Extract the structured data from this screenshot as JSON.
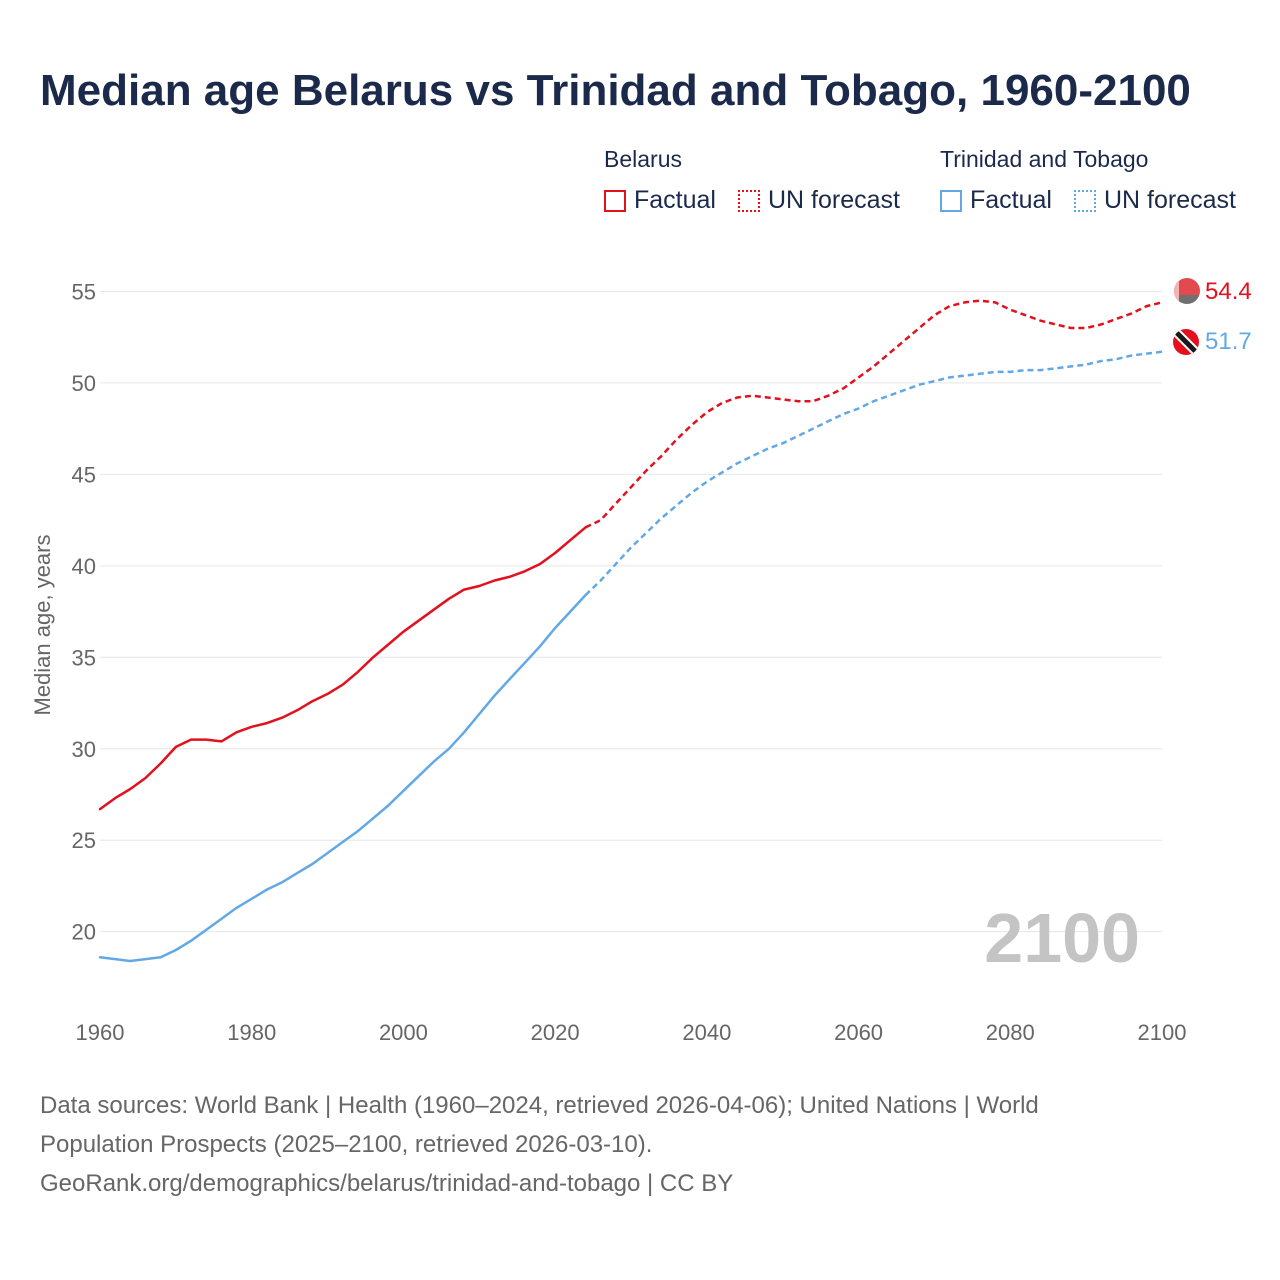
{
  "title": "Median age Belarus vs Trinidad and Tobago, 1960-2100",
  "legend": {
    "groups": [
      {
        "title": "Belarus",
        "factual": "Factual",
        "forecast": "UN forecast",
        "color": "#e3101e"
      },
      {
        "title": "Trinidad and Tobago",
        "factual": "Factual",
        "forecast": "UN forecast",
        "color": "#63a8e6"
      }
    ]
  },
  "footer": {
    "line1": "Data sources: World Bank | Health (1960–2024, retrieved 2026-04-06); United Nations | World",
    "line2": "Population Prospects (2025–2100, retrieved 2026-03-10).",
    "line3": "GeoRank.org/demographics/belarus/trinidad-and-tobago | CC BY"
  },
  "chart_data": {
    "type": "line",
    "title": "Median age Belarus vs Trinidad and Tobago, 1960-2100",
    "xlabel": "",
    "ylabel": "Median age, years",
    "xlim": [
      1960,
      2100
    ],
    "ylim": [
      15.5,
      56.5
    ],
    "x_ticks": [
      1960,
      1980,
      2000,
      2020,
      2040,
      2060,
      2080,
      2100
    ],
    "y_ticks": [
      20,
      25,
      30,
      35,
      40,
      45,
      50,
      55
    ],
    "grid": true,
    "year_label": "2100",
    "factual_until": 2024,
    "series": [
      {
        "name": "Belarus",
        "color": "#e3101e",
        "end_value": "54.4",
        "flag": "belarus-flag",
        "points": [
          [
            1960,
            26.7
          ],
          [
            1962,
            27.3
          ],
          [
            1964,
            27.8
          ],
          [
            1966,
            28.4
          ],
          [
            1968,
            29.2
          ],
          [
            1970,
            30.1
          ],
          [
            1972,
            30.5
          ],
          [
            1974,
            30.5
          ],
          [
            1976,
            30.4
          ],
          [
            1978,
            30.9
          ],
          [
            1980,
            31.2
          ],
          [
            1982,
            31.4
          ],
          [
            1984,
            31.7
          ],
          [
            1986,
            32.1
          ],
          [
            1988,
            32.6
          ],
          [
            1990,
            33.0
          ],
          [
            1992,
            33.5
          ],
          [
            1994,
            34.2
          ],
          [
            1996,
            35.0
          ],
          [
            1998,
            35.7
          ],
          [
            2000,
            36.4
          ],
          [
            2002,
            37.0
          ],
          [
            2004,
            37.6
          ],
          [
            2006,
            38.2
          ],
          [
            2008,
            38.7
          ],
          [
            2010,
            38.9
          ],
          [
            2012,
            39.2
          ],
          [
            2014,
            39.4
          ],
          [
            2016,
            39.7
          ],
          [
            2018,
            40.1
          ],
          [
            2020,
            40.7
          ],
          [
            2022,
            41.4
          ],
          [
            2024,
            42.1
          ],
          [
            2026,
            42.5
          ],
          [
            2028,
            43.4
          ],
          [
            2030,
            44.3
          ],
          [
            2032,
            45.2
          ],
          [
            2034,
            46.0
          ],
          [
            2036,
            46.9
          ],
          [
            2038,
            47.7
          ],
          [
            2040,
            48.4
          ],
          [
            2042,
            48.9
          ],
          [
            2044,
            49.2
          ],
          [
            2046,
            49.3
          ],
          [
            2048,
            49.2
          ],
          [
            2050,
            49.1
          ],
          [
            2052,
            49.0
          ],
          [
            2054,
            49.0
          ],
          [
            2056,
            49.3
          ],
          [
            2058,
            49.7
          ],
          [
            2060,
            50.3
          ],
          [
            2062,
            50.9
          ],
          [
            2064,
            51.6
          ],
          [
            2066,
            52.3
          ],
          [
            2068,
            53.0
          ],
          [
            2070,
            53.7
          ],
          [
            2072,
            54.2
          ],
          [
            2074,
            54.4
          ],
          [
            2076,
            54.5
          ],
          [
            2078,
            54.4
          ],
          [
            2080,
            54.0
          ],
          [
            2082,
            53.7
          ],
          [
            2084,
            53.4
          ],
          [
            2086,
            53.2
          ],
          [
            2088,
            53.0
          ],
          [
            2090,
            53.0
          ],
          [
            2092,
            53.2
          ],
          [
            2094,
            53.5
          ],
          [
            2096,
            53.8
          ],
          [
            2098,
            54.2
          ],
          [
            2100,
            54.4
          ]
        ]
      },
      {
        "name": "Trinidad and Tobago",
        "color": "#63a8e6",
        "end_value": "51.7",
        "flag": "trinidad-and-tobago-flag",
        "points": [
          [
            1960,
            18.6
          ],
          [
            1962,
            18.5
          ],
          [
            1964,
            18.4
          ],
          [
            1966,
            18.5
          ],
          [
            1968,
            18.6
          ],
          [
            1970,
            19.0
          ],
          [
            1972,
            19.5
          ],
          [
            1974,
            20.1
          ],
          [
            1976,
            20.7
          ],
          [
            1978,
            21.3
          ],
          [
            1980,
            21.8
          ],
          [
            1982,
            22.3
          ],
          [
            1984,
            22.7
          ],
          [
            1986,
            23.2
          ],
          [
            1988,
            23.7
          ],
          [
            1990,
            24.3
          ],
          [
            1992,
            24.9
          ],
          [
            1994,
            25.5
          ],
          [
            1996,
            26.2
          ],
          [
            1998,
            26.9
          ],
          [
            2000,
            27.7
          ],
          [
            2002,
            28.5
          ],
          [
            2004,
            29.3
          ],
          [
            2006,
            30.0
          ],
          [
            2008,
            30.9
          ],
          [
            2010,
            31.9
          ],
          [
            2012,
            32.9
          ],
          [
            2014,
            33.8
          ],
          [
            2016,
            34.7
          ],
          [
            2018,
            35.6
          ],
          [
            2020,
            36.6
          ],
          [
            2022,
            37.5
          ],
          [
            2024,
            38.4
          ],
          [
            2026,
            39.2
          ],
          [
            2028,
            40.1
          ],
          [
            2030,
            41.0
          ],
          [
            2032,
            41.8
          ],
          [
            2034,
            42.6
          ],
          [
            2036,
            43.3
          ],
          [
            2038,
            44.0
          ],
          [
            2040,
            44.6
          ],
          [
            2042,
            45.1
          ],
          [
            2044,
            45.6
          ],
          [
            2046,
            46.0
          ],
          [
            2048,
            46.4
          ],
          [
            2050,
            46.7
          ],
          [
            2052,
            47.1
          ],
          [
            2054,
            47.5
          ],
          [
            2056,
            47.9
          ],
          [
            2058,
            48.3
          ],
          [
            2060,
            48.6
          ],
          [
            2062,
            49.0
          ],
          [
            2064,
            49.3
          ],
          [
            2066,
            49.6
          ],
          [
            2068,
            49.9
          ],
          [
            2070,
            50.1
          ],
          [
            2072,
            50.3
          ],
          [
            2074,
            50.4
          ],
          [
            2076,
            50.5
          ],
          [
            2078,
            50.6
          ],
          [
            2080,
            50.6
          ],
          [
            2082,
            50.7
          ],
          [
            2084,
            50.7
          ],
          [
            2086,
            50.8
          ],
          [
            2088,
            50.9
          ],
          [
            2090,
            51.0
          ],
          [
            2092,
            51.2
          ],
          [
            2094,
            51.3
          ],
          [
            2096,
            51.5
          ],
          [
            2098,
            51.6
          ],
          [
            2100,
            51.7
          ]
        ]
      }
    ]
  }
}
